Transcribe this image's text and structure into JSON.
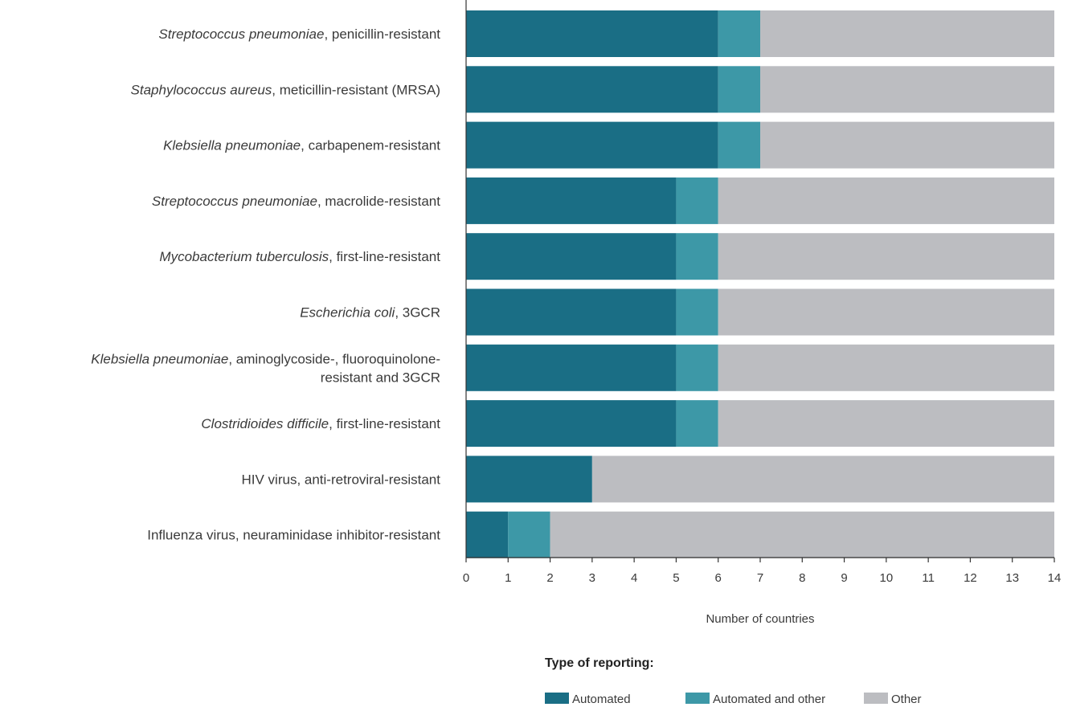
{
  "chart_data": {
    "type": "bar",
    "orientation": "horizontal",
    "stacked": true,
    "categories": [
      {
        "italic": "Streptococcus pneumoniae",
        "rest": ", penicillin-resistant"
      },
      {
        "italic": "Staphylococcus aureus",
        "rest": ", meticillin-resistant (MRSA)"
      },
      {
        "italic": "Klebsiella pneumoniae",
        "rest": ", carbapenem-resistant"
      },
      {
        "italic": "Streptococcus pneumoniae",
        "rest": ", macrolide-resistant"
      },
      {
        "italic": "Mycobacterium tuberculosis",
        "rest": ", first-line-resistant"
      },
      {
        "italic": "Escherichia coli",
        "rest": ", 3GCR"
      },
      {
        "italic": "Klebsiella pneumoniae",
        "rest": ", aminoglycoside-, fluoroquinolone-",
        "line2": "resistant and 3GCR"
      },
      {
        "italic": "Clostridioides difficile",
        "rest": ", first-line-resistant"
      },
      {
        "italic": "",
        "rest": "HIV virus, anti-retroviral-resistant"
      },
      {
        "italic": "",
        "rest": "Influenza virus, neuraminidase inhibitor-resistant"
      }
    ],
    "series": [
      {
        "name": "Automated",
        "color": "#1a6e85",
        "values": [
          6,
          6,
          6,
          5,
          5,
          5,
          5,
          5,
          3,
          1
        ]
      },
      {
        "name": "Automated and other",
        "color": "#3d98a7",
        "values": [
          1,
          1,
          1,
          1,
          1,
          1,
          1,
          1,
          0,
          1
        ]
      },
      {
        "name": "Other",
        "color": "#bcbdc1",
        "values": [
          7,
          7,
          7,
          8,
          8,
          8,
          8,
          8,
          11,
          12
        ]
      }
    ],
    "xlabel": "Number of countries",
    "xlim": [
      0,
      14
    ],
    "xticks": [
      "0",
      "1",
      "2",
      "3",
      "4",
      "5",
      "6",
      "7",
      "8",
      "9",
      "10",
      "11",
      "12",
      "13",
      "14"
    ],
    "legend_title": "Type of reporting:",
    "legend_position": "bottom",
    "grid": false
  }
}
